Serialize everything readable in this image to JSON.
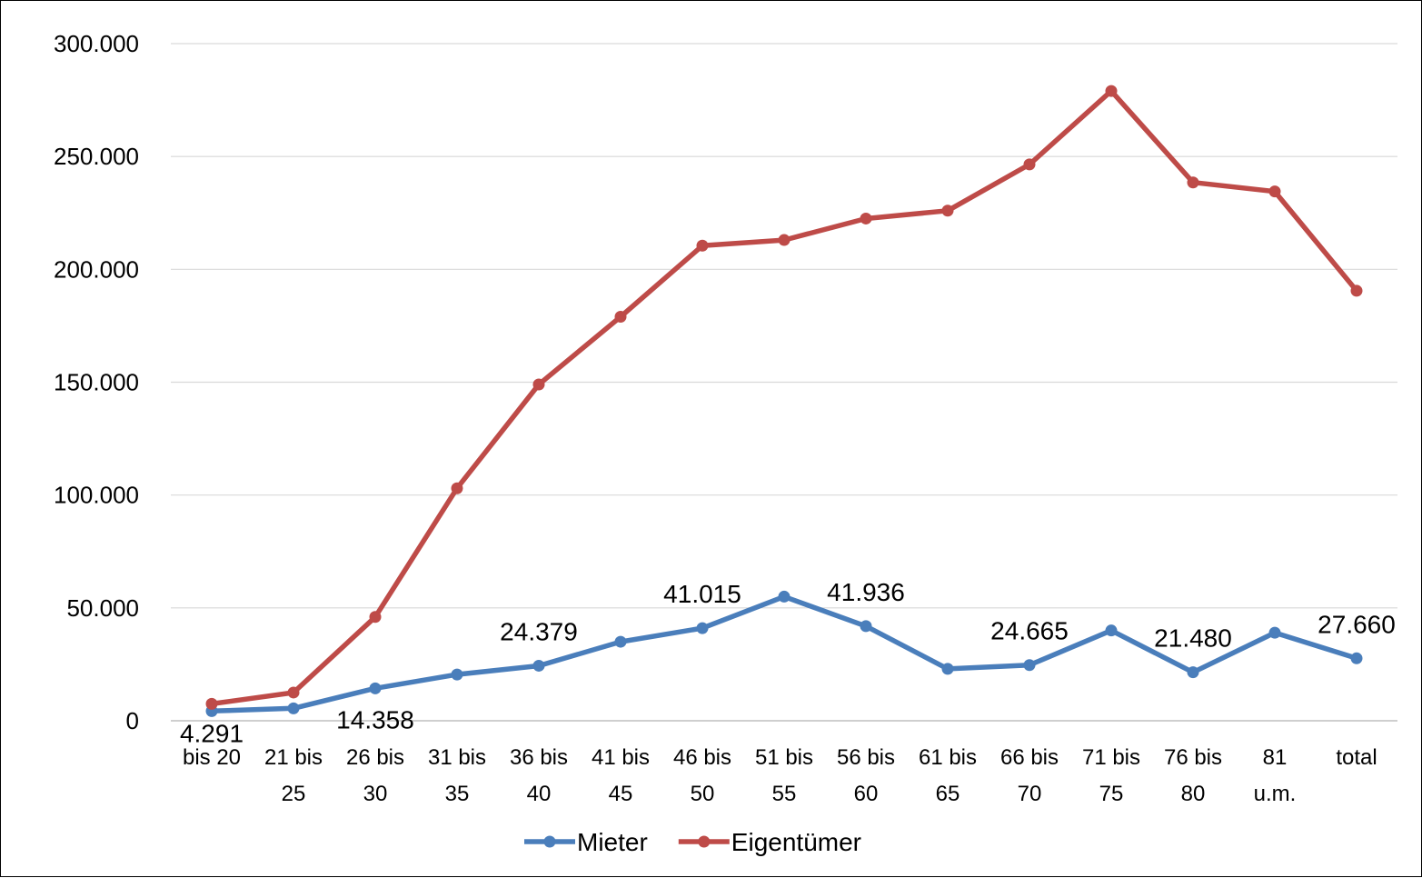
{
  "chart_data": {
    "type": "line",
    "title": "",
    "xlabel": "",
    "ylabel": "",
    "categories": [
      [
        "bis 20"
      ],
      [
        "21 bis",
        "25"
      ],
      [
        "26 bis",
        "30"
      ],
      [
        "31 bis",
        "35"
      ],
      [
        "36 bis",
        "40"
      ],
      [
        "41 bis",
        "45"
      ],
      [
        "46 bis",
        "50"
      ],
      [
        "51 bis",
        "55"
      ],
      [
        "56 bis",
        "60"
      ],
      [
        "61 bis",
        "65"
      ],
      [
        "66 bis",
        "70"
      ],
      [
        "71 bis",
        "75"
      ],
      [
        "76 bis",
        "80"
      ],
      [
        "81",
        "u.m."
      ],
      [
        "total"
      ]
    ],
    "ylim": [
      0,
      300000
    ],
    "y_ticks": [
      0,
      50000,
      100000,
      150000,
      200000,
      250000,
      300000
    ],
    "y_tick_labels": [
      "0",
      "50.000",
      "100.000",
      "150.000",
      "200.000",
      "250.000",
      "300.000"
    ],
    "grid": true,
    "legend_position": "bottom",
    "series": [
      {
        "name": "Mieter",
        "color": "#4a7ebb",
        "values": [
          4291,
          5500,
          14358,
          20500,
          24379,
          35000,
          41015,
          55000,
          41936,
          23000,
          24665,
          40000,
          21480,
          39000,
          27660
        ],
        "data_labels": [
          "4.291",
          "",
          "14.358",
          "",
          "24.379",
          "",
          "41.015",
          "",
          "41.936",
          "",
          "24.665",
          "",
          "21.480",
          "",
          "27.660"
        ]
      },
      {
        "name": "Eigentümer",
        "color": "#be4b48",
        "values": [
          7500,
          12500,
          46000,
          103000,
          149000,
          179000,
          210500,
          213000,
          222500,
          226000,
          246500,
          279000,
          238500,
          234500,
          190500
        ],
        "data_labels": []
      }
    ]
  }
}
